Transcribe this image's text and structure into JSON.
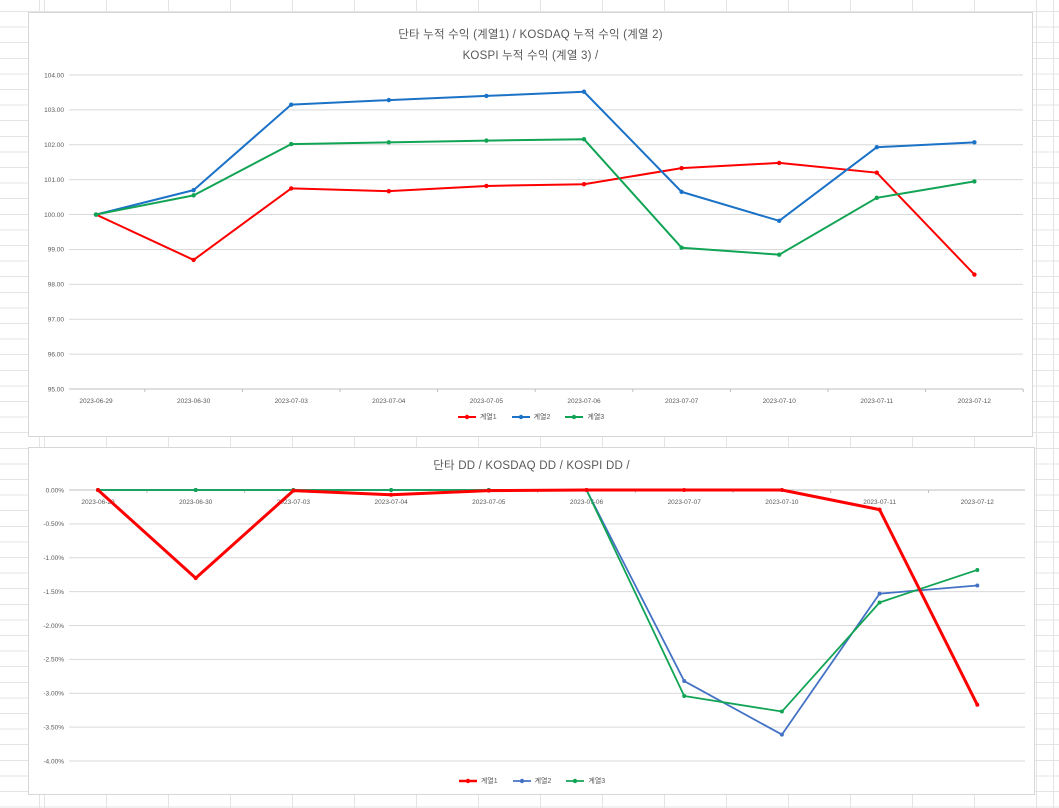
{
  "style": {
    "gridline_color": "#d9d9d9",
    "axis_color": "#bfbfbf",
    "label_color": "#595959",
    "sheet_grid_color": "#e4e4e4",
    "chart_border_color": "#d7d7d7"
  },
  "chart_data": [
    {
      "type": "line",
      "title_line1": "단타 누적 수익 (계열1) /  KOSDAQ 누적 수익 (계열 2)",
      "title_line2": "KOSPI 누적 수익 (계열 3) /",
      "categories": [
        "2023-06-29",
        "2023-06-30",
        "2023-07-03",
        "2023-07-04",
        "2023-07-05",
        "2023-07-06",
        "2023-07-07",
        "2023-07-10",
        "2023-07-11",
        "2023-07-12"
      ],
      "series": [
        {
          "name": "계열1",
          "color": "#FF0000",
          "line_width": 2,
          "values": [
            100.0,
            98.7,
            100.75,
            100.67,
            100.82,
            100.87,
            101.33,
            101.48,
            101.2,
            98.28
          ]
        },
        {
          "name": "계열2",
          "color": "#1B72C6",
          "line_width": 2,
          "values": [
            100.0,
            100.7,
            103.15,
            103.28,
            103.4,
            103.52,
            100.65,
            99.82,
            101.93,
            102.07
          ]
        },
        {
          "name": "계열3",
          "color": "#12A455",
          "line_width": 2,
          "values": [
            100.0,
            100.55,
            102.02,
            102.07,
            102.12,
            102.16,
            99.05,
            98.85,
            100.48,
            100.95
          ]
        }
      ],
      "ylim": [
        95,
        104
      ],
      "ytick_step": 1,
      "ytick_format": "fixed2",
      "ytick_labels": [
        "104.00",
        "103.00",
        "102.00",
        "101.00",
        "100.00",
        "99.00",
        "98.00",
        "97.00",
        "96.00",
        "95.00"
      ],
      "grid": true,
      "legend_position": "bottom",
      "axis_side": "min",
      "draw_order": [
        0,
        1,
        2
      ],
      "marker_radius": 2.2
    },
    {
      "type": "line",
      "title_line1": "단타 DD / KOSDAQ DD / KOSPI DD /",
      "title_line2": "",
      "categories": [
        "2023-06-29",
        "2023-06-30",
        "2023-07-03",
        "2023-07-04",
        "2023-07-05",
        "2023-07-06",
        "2023-07-07",
        "2023-07-10",
        "2023-07-11",
        "2023-07-12"
      ],
      "series": [
        {
          "name": "계열1",
          "color": "#FF0000",
          "line_width": 3,
          "values": [
            0.0,
            -1.3,
            -0.01,
            -0.07,
            -0.01,
            0.0,
            0.0,
            0.0,
            -0.29,
            -3.17
          ]
        },
        {
          "name": "계열2",
          "color": "#4472C4",
          "line_width": 1.8,
          "values": [
            0.0,
            0.0,
            0.0,
            0.0,
            0.0,
            0.0,
            -2.82,
            -3.61,
            -1.53,
            -1.41
          ]
        },
        {
          "name": "계열3",
          "color": "#12A455",
          "line_width": 1.8,
          "values": [
            0.0,
            0.0,
            0.0,
            0.0,
            0.0,
            0.0,
            -3.04,
            -3.27,
            -1.66,
            -1.18
          ]
        }
      ],
      "ylim": [
        -4,
        0
      ],
      "ytick_step": 0.5,
      "ytick_format": "pct2",
      "ytick_labels": [
        "0.00%",
        "-0.50%",
        "-1.00%",
        "-1.50%",
        "-2.00%",
        "-2.50%",
        "-3.00%",
        "-3.50%",
        "-4.00%"
      ],
      "grid": true,
      "legend_position": "bottom",
      "axis_side": "max",
      "draw_order": [
        1,
        2,
        0
      ],
      "marker_radius": 2.0
    }
  ]
}
